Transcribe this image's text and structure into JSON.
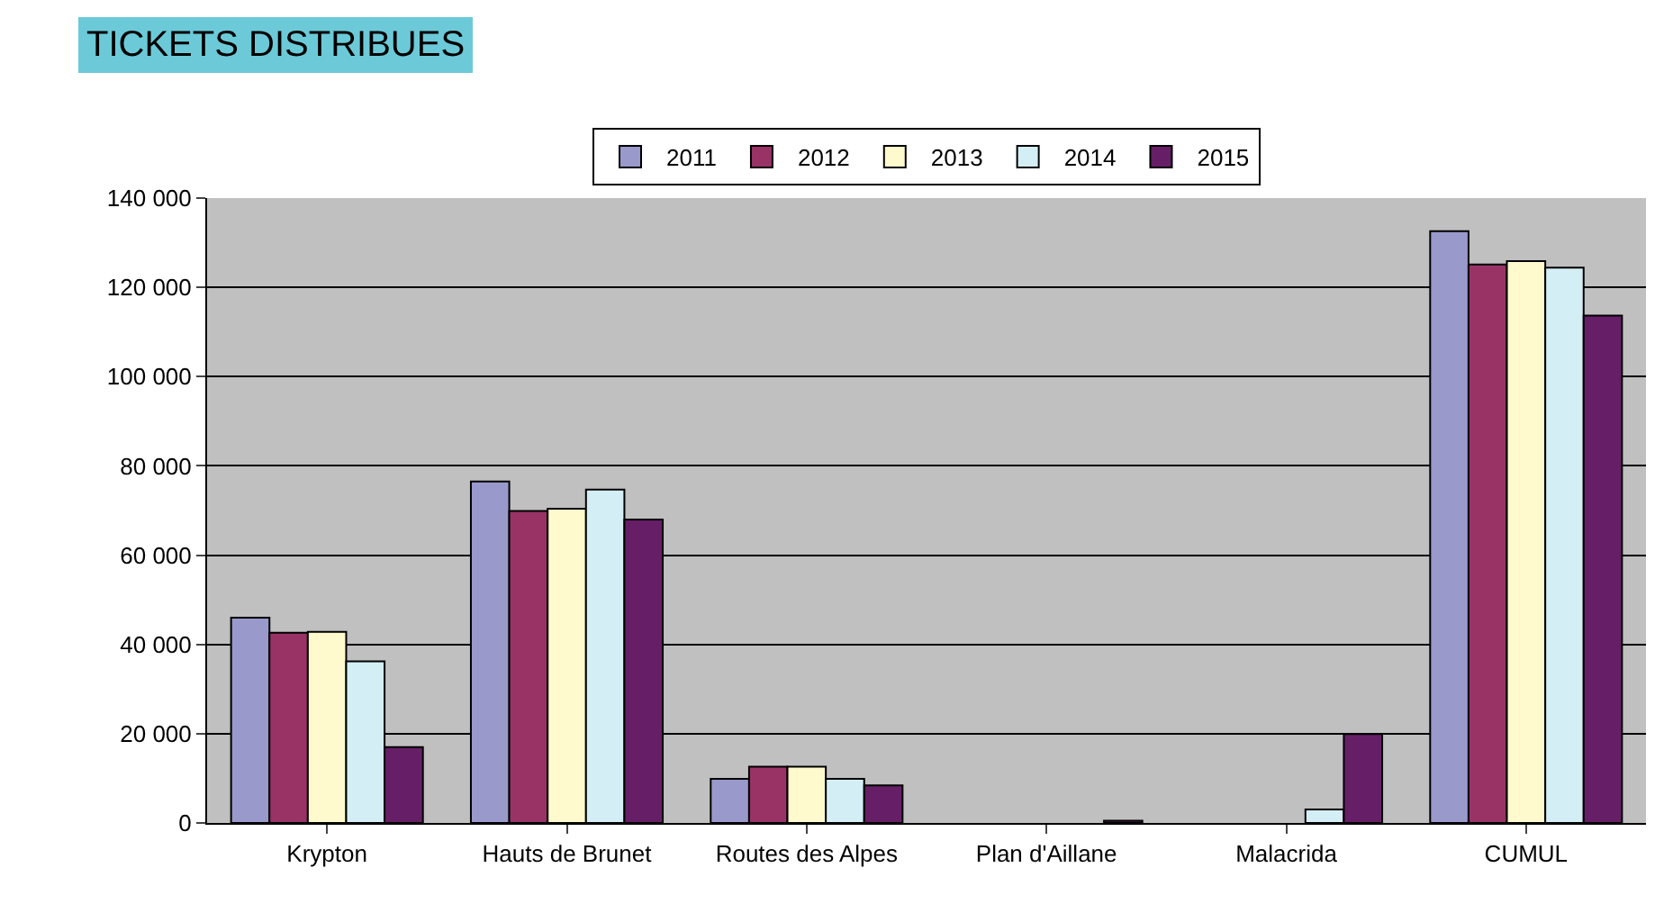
{
  "chart_data": {
    "type": "bar",
    "title": "TICKETS DISTRIBUES",
    "categories": [
      "Krypton",
      "Hauts de Brunet",
      "Routes des Alpes",
      "Plan d'Aillane",
      "Malacrida",
      "CUMUL"
    ],
    "series": [
      {
        "name": "2011",
        "color": "#9999cc",
        "values": [
          46000,
          76500,
          9900,
          null,
          null,
          132600
        ]
      },
      {
        "name": "2012",
        "color": "#993366",
        "values": [
          42600,
          69900,
          12600,
          null,
          null,
          125100
        ]
      },
      {
        "name": "2013",
        "color": "#fffacd",
        "values": [
          42800,
          70400,
          12600,
          null,
          null,
          125900
        ]
      },
      {
        "name": "2014",
        "color": "#d4eef5",
        "values": [
          36200,
          74700,
          9900,
          null,
          3000,
          124400
        ]
      },
      {
        "name": "2015",
        "color": "#661f66",
        "values": [
          17000,
          68000,
          8400,
          500,
          19900,
          113700
        ]
      }
    ],
    "ylim": [
      0,
      140000
    ],
    "yticks": [
      {
        "value": 0,
        "label": "0"
      },
      {
        "value": 20000,
        "label": "20 000"
      },
      {
        "value": 40000,
        "label": "40 000"
      },
      {
        "value": 60000,
        "label": "60 000"
      },
      {
        "value": 80000,
        "label": "80 000"
      },
      {
        "value": 100000,
        "label": "100 000"
      },
      {
        "value": 120000,
        "label": "120 000"
      },
      {
        "value": 140000,
        "label": "140 000"
      }
    ],
    "grid": "y",
    "legend": "top"
  }
}
